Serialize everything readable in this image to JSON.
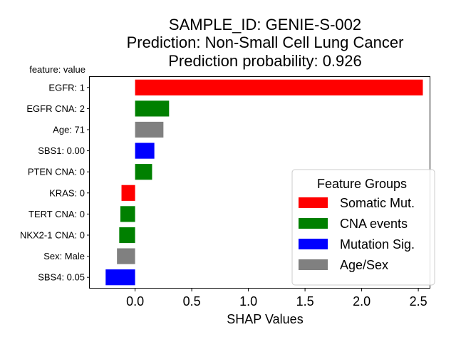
{
  "chart_data": {
    "type": "bar",
    "orientation": "horizontal",
    "title": [
      "SAMPLE_ID: GENIE-S-002",
      "Prediction: Non-Small Cell Lung Cancer",
      "Prediction probability: 0.926"
    ],
    "ylabel": "feature: value",
    "xlabel": "SHAP Values",
    "xlim": [
      -0.4,
      2.6
    ],
    "xticks": [
      0.0,
      0.5,
      1.0,
      1.5,
      2.0,
      2.5
    ],
    "xtick_labels": [
      "0.0",
      "0.5",
      "1.0",
      "1.5",
      "2.0",
      "2.5"
    ],
    "grid": false,
    "legend_position": "lower-right",
    "legend": {
      "title": "Feature Groups",
      "entries": [
        {
          "label": "Somatic Mut.",
          "color": "#ff0000"
        },
        {
          "label": "CNA events",
          "color": "#008000"
        },
        {
          "label": "Mutation Sig.",
          "color": "#0000ff"
        },
        {
          "label": "Age/Sex",
          "color": "#808080"
        }
      ]
    },
    "bars": [
      {
        "label": "EGFR: 1",
        "value": 2.54,
        "color": "#ff0000"
      },
      {
        "label": "EGFR CNA: 2",
        "value": 0.3,
        "color": "#008000"
      },
      {
        "label": "Age: 71",
        "value": 0.25,
        "color": "#808080"
      },
      {
        "label": "SBS1: 0.00",
        "value": 0.17,
        "color": "#0000ff"
      },
      {
        "label": "PTEN CNA: 0",
        "value": 0.15,
        "color": "#008000"
      },
      {
        "label": "KRAS: 0",
        "value": -0.12,
        "color": "#ff0000"
      },
      {
        "label": "TERT CNA: 0",
        "value": -0.13,
        "color": "#008000"
      },
      {
        "label": "NKX2-1 CNA: 0",
        "value": -0.14,
        "color": "#008000"
      },
      {
        "label": "Sex: Male",
        "value": -0.16,
        "color": "#808080"
      },
      {
        "label": "SBS4: 0.05",
        "value": -0.26,
        "color": "#0000ff"
      }
    ]
  }
}
